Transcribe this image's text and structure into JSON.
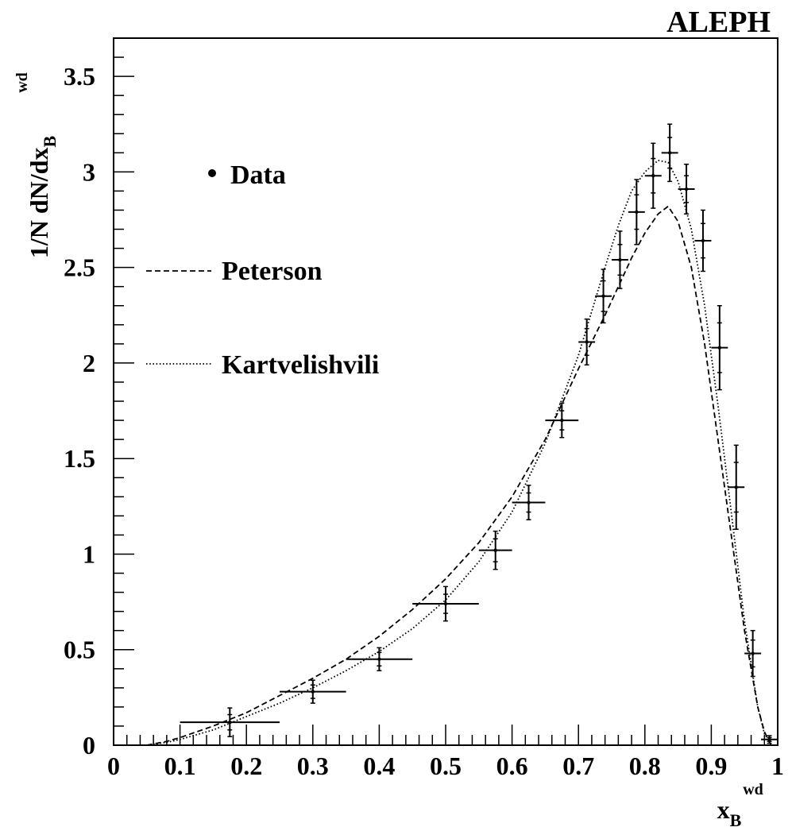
{
  "chart_data": {
    "type": "scatter",
    "experiment_label": "ALEPH",
    "ylabel": {
      "main": "1/N dN/dx",
      "sub": "B",
      "sup": "wd"
    },
    "xlabel": {
      "main": "x",
      "sub": "B",
      "sup": "wd"
    },
    "xlim": [
      0,
      1
    ],
    "ylim": [
      0,
      3.7
    ],
    "x_ticks": [
      0,
      0.1,
      0.2,
      0.3,
      0.4,
      0.5,
      0.6,
      0.7,
      0.8,
      0.9,
      1
    ],
    "x_tick_labels": [
      "0",
      "0.1",
      "0.2",
      "0.3",
      "0.4",
      "0.5",
      "0.6",
      "0.7",
      "0.8",
      "0.9",
      "1"
    ],
    "y_ticks": [
      0,
      0.5,
      1,
      1.5,
      2,
      2.5,
      3,
      3.5
    ],
    "y_tick_labels": [
      "0",
      "0.5",
      "1",
      "1.5",
      "2",
      "2.5",
      "3",
      "3.5"
    ],
    "grid": false,
    "legend": {
      "placement": "top-left",
      "entries": [
        {
          "label": "Data",
          "marker": "dot"
        },
        {
          "label": "Peterson",
          "line": "dashed"
        },
        {
          "label": "Kartvelishvili",
          "line": "dotted"
        }
      ]
    },
    "series": [
      {
        "name": "Data",
        "kind": "points",
        "points": [
          {
            "x": 0.175,
            "xlo": 0.1,
            "xhi": 0.25,
            "y": 0.12,
            "yerr": 0.075,
            "yerr_stat": 0.04
          },
          {
            "x": 0.3,
            "xlo": 0.25,
            "xhi": 0.35,
            "y": 0.28,
            "yerr": 0.06,
            "yerr_stat": 0.035
          },
          {
            "x": 0.4,
            "xlo": 0.35,
            "xhi": 0.45,
            "y": 0.45,
            "yerr": 0.06,
            "yerr_stat": 0.035
          },
          {
            "x": 0.5,
            "xlo": 0.45,
            "xhi": 0.55,
            "y": 0.74,
            "yerr": 0.09,
            "yerr_stat": 0.05
          },
          {
            "x": 0.575,
            "xlo": 0.55,
            "xhi": 0.6,
            "y": 1.02,
            "yerr": 0.1,
            "yerr_stat": 0.06
          },
          {
            "x": 0.625,
            "xlo": 0.6,
            "xhi": 0.65,
            "y": 1.27,
            "yerr": 0.09,
            "yerr_stat": 0.05
          },
          {
            "x": 0.675,
            "xlo": 0.65,
            "xhi": 0.7,
            "y": 1.7,
            "yerr": 0.09,
            "yerr_stat": 0.05
          },
          {
            "x": 0.7125,
            "xlo": 0.7,
            "xhi": 0.725,
            "y": 2.11,
            "yerr": 0.12,
            "yerr_stat": 0.07
          },
          {
            "x": 0.7375,
            "xlo": 0.725,
            "xhi": 0.75,
            "y": 2.35,
            "yerr": 0.14,
            "yerr_stat": 0.08
          },
          {
            "x": 0.7625,
            "xlo": 0.75,
            "xhi": 0.775,
            "y": 2.54,
            "yerr": 0.15,
            "yerr_stat": 0.08
          },
          {
            "x": 0.7875,
            "xlo": 0.775,
            "xhi": 0.8,
            "y": 2.79,
            "yerr": 0.17,
            "yerr_stat": 0.09
          },
          {
            "x": 0.8125,
            "xlo": 0.8,
            "xhi": 0.825,
            "y": 2.98,
            "yerr": 0.17,
            "yerr_stat": 0.09
          },
          {
            "x": 0.8375,
            "xlo": 0.825,
            "xhi": 0.85,
            "y": 3.1,
            "yerr": 0.15,
            "yerr_stat": 0.08
          },
          {
            "x": 0.8625,
            "xlo": 0.85,
            "xhi": 0.875,
            "y": 2.91,
            "yerr": 0.13,
            "yerr_stat": 0.07
          },
          {
            "x": 0.8875,
            "xlo": 0.875,
            "xhi": 0.9,
            "y": 2.64,
            "yerr": 0.16,
            "yerr_stat": 0.09
          },
          {
            "x": 0.9125,
            "xlo": 0.9,
            "xhi": 0.925,
            "y": 2.08,
            "yerr": 0.22,
            "yerr_stat": 0.13
          },
          {
            "x": 0.9375,
            "xlo": 0.925,
            "xhi": 0.95,
            "y": 1.35,
            "yerr": 0.22,
            "yerr_stat": 0.13
          },
          {
            "x": 0.9625,
            "xlo": 0.95,
            "xhi": 0.975,
            "y": 0.48,
            "yerr": 0.12,
            "yerr_stat": 0.07
          },
          {
            "x": 0.9875,
            "xlo": 0.975,
            "xhi": 1.0,
            "y": 0.03,
            "yerr": 0.02,
            "yerr_stat": 0.01
          }
        ]
      },
      {
        "name": "Peterson",
        "kind": "curve",
        "dash": "dashed",
        "x": [
          0.05,
          0.08,
          0.1,
          0.15,
          0.2,
          0.25,
          0.3,
          0.35,
          0.4,
          0.45,
          0.5,
          0.55,
          0.6,
          0.65,
          0.7,
          0.72,
          0.74,
          0.76,
          0.78,
          0.8,
          0.82,
          0.835,
          0.85,
          0.87,
          0.89,
          0.91,
          0.93,
          0.95,
          0.97,
          0.98,
          0.99
        ],
        "y": [
          0.0,
          0.02,
          0.04,
          0.1,
          0.17,
          0.26,
          0.35,
          0.45,
          0.57,
          0.71,
          0.87,
          1.06,
          1.3,
          1.6,
          1.97,
          2.11,
          2.25,
          2.4,
          2.55,
          2.68,
          2.78,
          2.82,
          2.74,
          2.5,
          2.1,
          1.6,
          1.1,
          0.6,
          0.2,
          0.07,
          0.0
        ]
      },
      {
        "name": "Kartvelishvili",
        "kind": "curve",
        "dash": "dotted",
        "x": [
          0.05,
          0.08,
          0.1,
          0.15,
          0.2,
          0.25,
          0.3,
          0.35,
          0.4,
          0.45,
          0.5,
          0.55,
          0.6,
          0.65,
          0.7,
          0.72,
          0.74,
          0.76,
          0.78,
          0.8,
          0.82,
          0.835,
          0.85,
          0.87,
          0.89,
          0.91,
          0.93,
          0.95,
          0.97,
          0.98,
          0.99
        ],
        "y": [
          0.0,
          0.015,
          0.03,
          0.08,
          0.15,
          0.22,
          0.3,
          0.39,
          0.49,
          0.61,
          0.76,
          0.96,
          1.22,
          1.58,
          2.04,
          2.27,
          2.5,
          2.72,
          2.9,
          3.0,
          3.06,
          3.05,
          2.95,
          2.7,
          2.3,
          1.78,
          1.22,
          0.65,
          0.2,
          0.06,
          0.0
        ]
      }
    ]
  }
}
